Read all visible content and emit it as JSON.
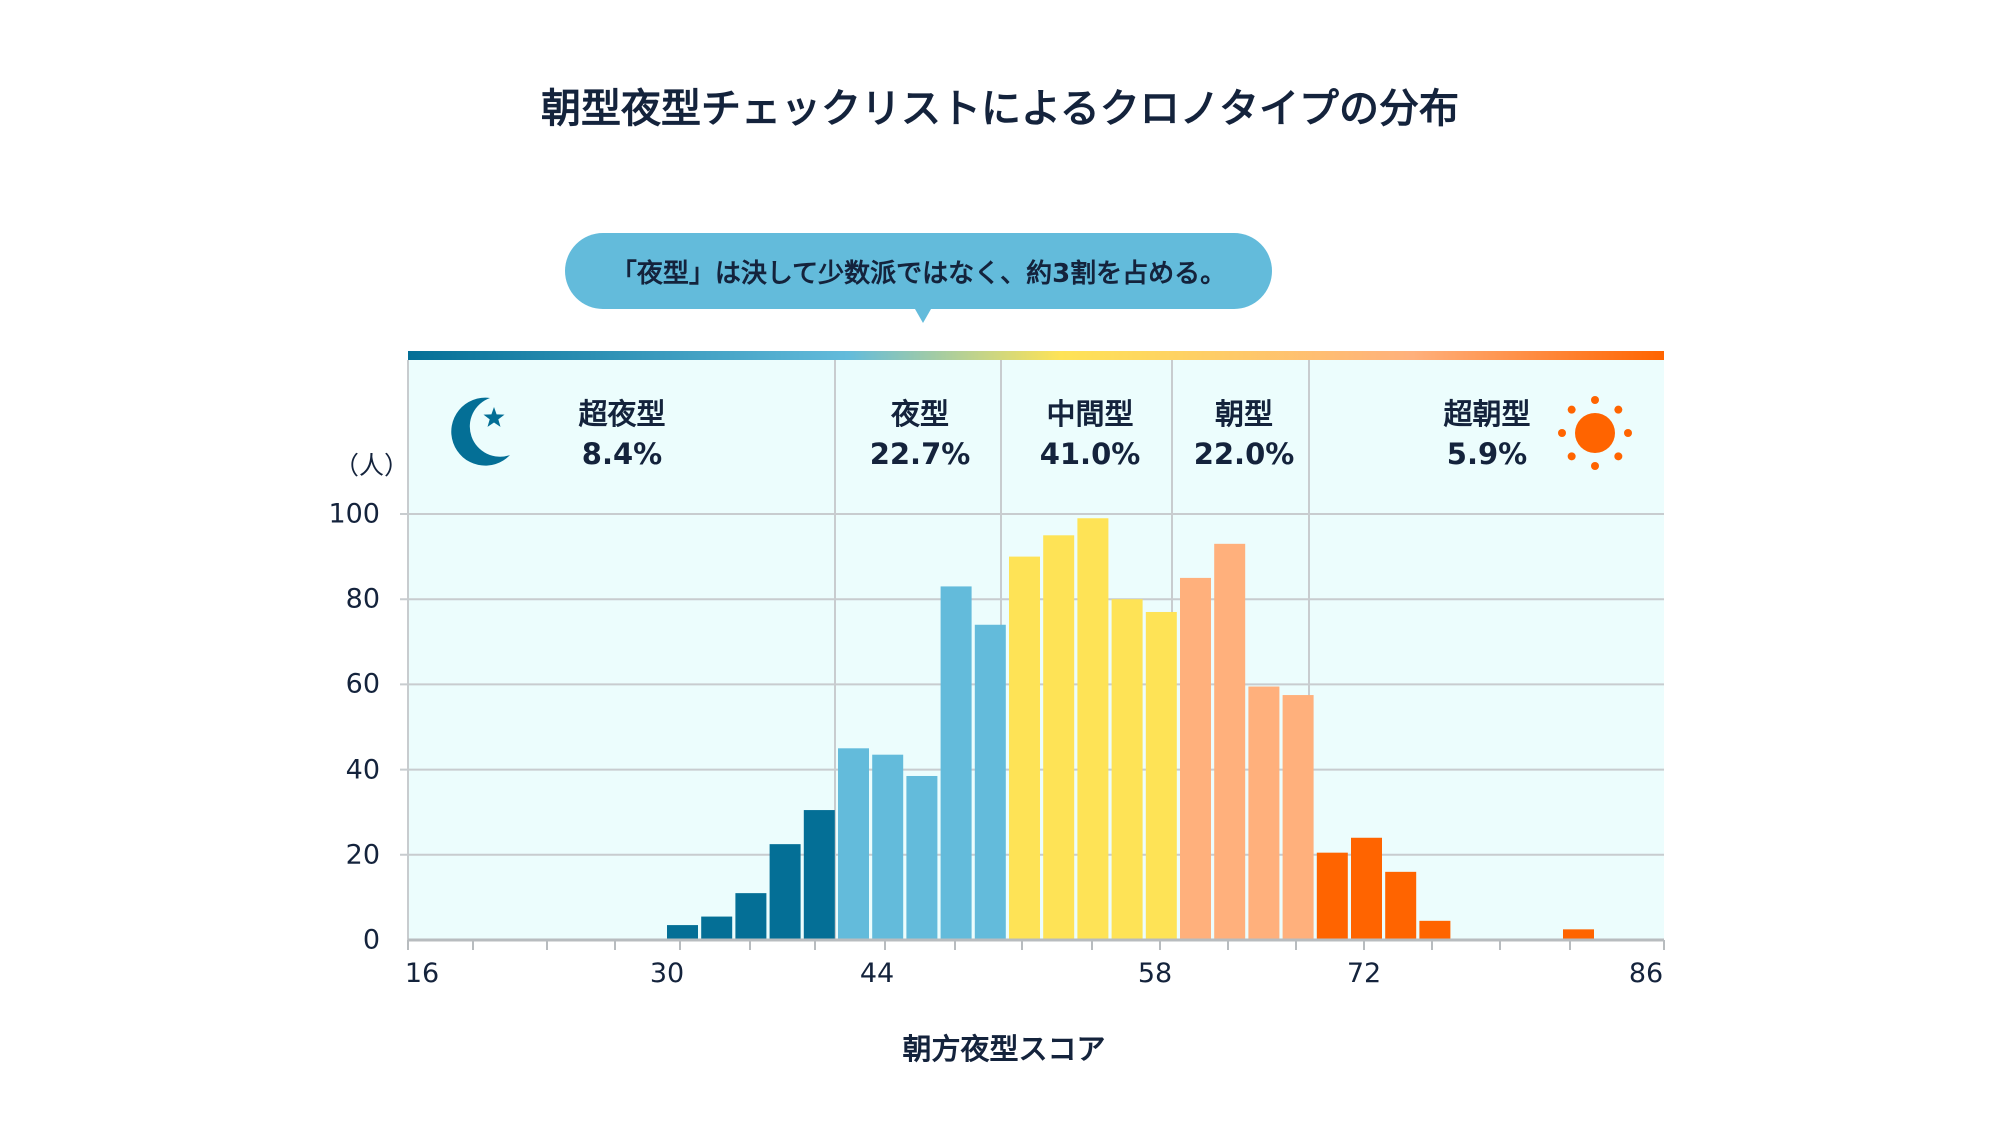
{
  "title": "朝型夜型チェックリストによるクロノタイプの分布",
  "callout": "「夜型」は決して少数派ではなく、約3割を占める。",
  "chart_data": {
    "type": "bar",
    "title": "朝型夜型チェックリストによるクロノタイプの分布",
    "xlabel": "朝方夜型スコア",
    "ylabel": "（人）",
    "ylim": [
      0,
      100
    ],
    "yticks": [
      "0",
      "20",
      "40",
      "60",
      "80",
      "100"
    ],
    "xticks": [
      "16",
      "30",
      "44",
      "58",
      "72",
      "86"
    ],
    "xlim": [
      16,
      86
    ],
    "grid": true,
    "values": [
      3.5,
      5.5,
      11,
      22.5,
      30.5,
      45,
      43.5,
      38.5,
      83,
      74,
      90,
      95,
      99,
      80,
      77,
      85,
      93,
      59.5,
      57.5,
      20.5,
      24,
      16,
      4.5,
      2.5
    ],
    "groups": [
      {
        "label": "超夜型",
        "percent": "8.4%",
        "color": "#046f96",
        "icon": "moon-star-icon"
      },
      {
        "label": "夜型",
        "percent": "22.7%",
        "color": "#63bbdb"
      },
      {
        "label": "中間型",
        "percent": "41.0%",
        "color": "#fee356"
      },
      {
        "label": "朝型",
        "percent": "22.0%",
        "color": "#ffb07c"
      },
      {
        "label": "超朝型",
        "percent": "5.9%",
        "color": "#ff6400",
        "icon": "sun-icon"
      }
    ],
    "background": "#ecfdfd"
  }
}
